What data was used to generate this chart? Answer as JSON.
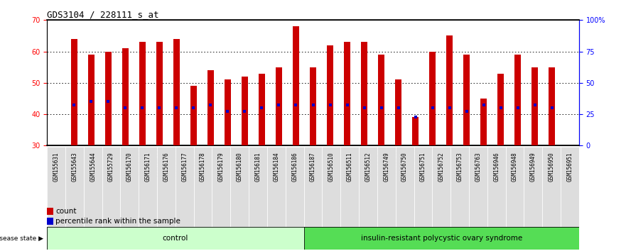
{
  "title": "GDS3104 / 228111_s_at",
  "samples": [
    "GSM155631",
    "GSM155643",
    "GSM155644",
    "GSM155729",
    "GSM156170",
    "GSM156171",
    "GSM156176",
    "GSM156177",
    "GSM156178",
    "GSM156179",
    "GSM156180",
    "GSM156181",
    "GSM156184",
    "GSM156186",
    "GSM156187",
    "GSM156510",
    "GSM156511",
    "GSM156512",
    "GSM156749",
    "GSM156750",
    "GSM156751",
    "GSM156752",
    "GSM156753",
    "GSM156763",
    "GSM156946",
    "GSM156948",
    "GSM156949",
    "GSM156950",
    "GSM156951"
  ],
  "counts": [
    64,
    59,
    60,
    61,
    63,
    63,
    64,
    49,
    54,
    51,
    52,
    53,
    55,
    68,
    55,
    62,
    63,
    63,
    59,
    51,
    39,
    60,
    65,
    59,
    45,
    53,
    59,
    55,
    55
  ],
  "percentile_values": [
    43,
    44,
    44,
    42,
    42,
    42,
    42,
    42,
    43,
    41,
    41,
    42,
    43,
    43,
    43,
    43,
    43,
    42,
    42,
    42,
    39,
    42,
    42,
    41,
    43,
    42,
    42,
    43,
    42
  ],
  "control_count": 14,
  "disease_label": "insulin-resistant polycystic ovary syndrome",
  "control_label": "control",
  "disease_state_label": "disease state",
  "bar_color": "#cc0000",
  "percentile_color": "#0000cc",
  "control_bg": "#ccffcc",
  "disease_bg": "#55dd55",
  "ylim_left": [
    30,
    70
  ],
  "yticks_left": [
    30,
    40,
    50,
    60,
    70
  ],
  "ylim_right": [
    0,
    100
  ],
  "yticks_right": [
    0,
    25,
    50,
    75,
    100
  ],
  "legend_count_label": "count",
  "legend_percentile_label": "percentile rank within the sample",
  "bg_color": "#dddddd",
  "plot_bg": "#ffffff"
}
